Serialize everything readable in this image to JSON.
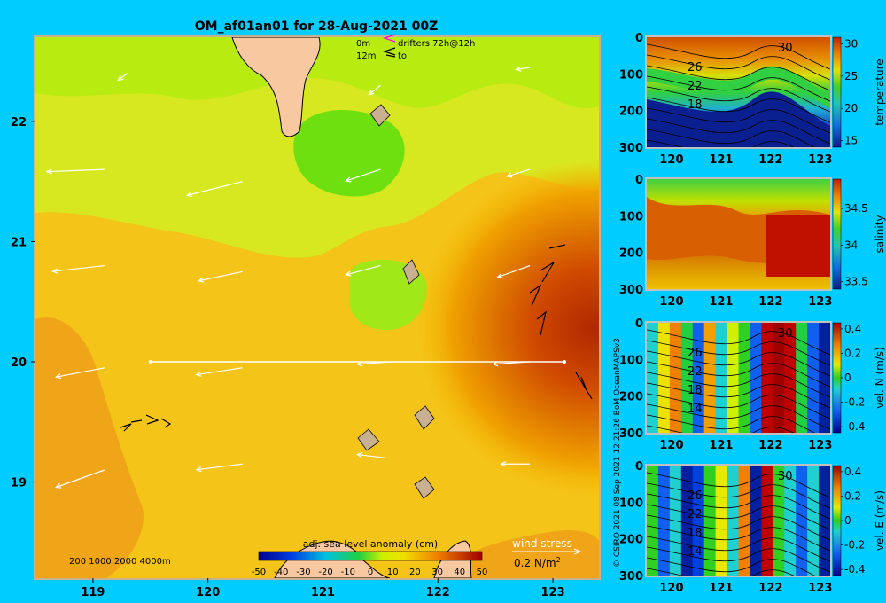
{
  "title": "OM_af01an01 for 28-Aug-2021 00Z",
  "credit": "© CSIRO 2021   08 Sep 2021 12:21:26 BoM OceanMAPSv3",
  "legend_drifters": {
    "line1_depth": "0m",
    "line1_text": "drifters 72h@12h",
    "line2_depth": "12m",
    "line2_text": "to",
    "line1_color": "#ff00ff",
    "line2_color": "#000000"
  },
  "depth_legend": "200  1000  2000  4000m",
  "colorbar": {
    "title": "adj. sea level anomaly (cm)",
    "ticks": [
      "-50",
      "-40",
      "-30",
      "-20",
      "-10",
      "0",
      "10",
      "20",
      "30",
      "40",
      "50"
    ]
  },
  "wind_legend": {
    "label": "wind stress",
    "value": "0.2 N/m",
    "sup": "2"
  },
  "chart_data": [
    {
      "type": "heatmap",
      "name": "map",
      "title": "OM_af01an01 for 28-Aug-2021 00Z",
      "x_ticks": [
        119,
        120,
        121,
        122,
        123
      ],
      "y_ticks": [
        19,
        20,
        21,
        22
      ],
      "xlim": [
        118.5,
        123.4
      ],
      "ylim": [
        18.2,
        22.7
      ],
      "colorbar_label": "adj. sea level anomaly (cm)",
      "colorbar_range": [
        -50,
        50
      ],
      "section_line": {
        "lon": [
          119.5,
          123.1
        ],
        "lat": [
          20.0,
          20.0
        ]
      },
      "wind_vectors": [
        {
          "lon": 119.3,
          "lat": 22.4,
          "u": -0.08,
          "v": -0.06
        },
        {
          "lon": 120.0,
          "lat": 22.5,
          "u": 0,
          "v": 0
        },
        {
          "lon": 121.5,
          "lat": 22.3,
          "u": -0.1,
          "v": -0.08
        },
        {
          "lon": 122.8,
          "lat": 22.45,
          "u": -0.12,
          "v": -0.02
        },
        {
          "lon": 119.1,
          "lat": 21.6,
          "u": -0.5,
          "v": -0.02
        },
        {
          "lon": 120.3,
          "lat": 21.5,
          "u": -0.48,
          "v": -0.12
        },
        {
          "lon": 121.5,
          "lat": 21.6,
          "u": -0.3,
          "v": -0.1
        },
        {
          "lon": 122.8,
          "lat": 21.6,
          "u": -0.2,
          "v": -0.06
        },
        {
          "lon": 119.1,
          "lat": 20.8,
          "u": -0.45,
          "v": -0.05
        },
        {
          "lon": 120.3,
          "lat": 20.75,
          "u": -0.38,
          "v": -0.08
        },
        {
          "lon": 121.5,
          "lat": 20.8,
          "u": -0.3,
          "v": -0.08
        },
        {
          "lon": 122.8,
          "lat": 20.8,
          "u": -0.28,
          "v": -0.1
        },
        {
          "lon": 119.1,
          "lat": 19.95,
          "u": -0.42,
          "v": -0.08
        },
        {
          "lon": 120.3,
          "lat": 19.95,
          "u": -0.4,
          "v": -0.06
        },
        {
          "lon": 121.6,
          "lat": 20.0,
          "u": -0.3,
          "v": -0.02
        },
        {
          "lon": 122.8,
          "lat": 20.0,
          "u": -0.32,
          "v": -0.02
        },
        {
          "lon": 119.1,
          "lat": 19.1,
          "u": -0.42,
          "v": -0.15
        },
        {
          "lon": 120.3,
          "lat": 19.15,
          "u": -0.4,
          "v": -0.05
        },
        {
          "lon": 121.55,
          "lat": 19.2,
          "u": -0.25,
          "v": 0.03
        },
        {
          "lon": 122.8,
          "lat": 19.15,
          "u": -0.25,
          "v": 0
        }
      ]
    },
    {
      "type": "heatmap",
      "name": "temperature",
      "ylabel": "temperature",
      "x_ticks": [
        120,
        121,
        122,
        123
      ],
      "y_ticks": [
        0,
        100,
        200,
        300
      ],
      "xlim": [
        119.5,
        123.2
      ],
      "ylim": [
        300,
        0
      ],
      "colorbar_ticks": [
        15,
        20,
        25,
        30
      ],
      "colorbar_range": [
        14,
        31
      ],
      "contour_labels": [
        "30",
        "26",
        "22",
        "18"
      ]
    },
    {
      "type": "heatmap",
      "name": "salinity",
      "ylabel": "salinity",
      "x_ticks": [
        120,
        121,
        122,
        123
      ],
      "y_ticks": [
        0,
        100,
        200,
        300
      ],
      "xlim": [
        119.5,
        123.2
      ],
      "ylim": [
        300,
        0
      ],
      "colorbar_ticks": [
        "33.5",
        "34",
        "34.5"
      ],
      "colorbar_range": [
        33.4,
        34.9
      ]
    },
    {
      "type": "heatmap",
      "name": "velocity-north",
      "ylabel": "vel. N (m/s)",
      "x_ticks": [
        120,
        121,
        122,
        123
      ],
      "y_ticks": [
        0,
        100,
        200,
        300
      ],
      "xlim": [
        119.5,
        123.2
      ],
      "ylim": [
        300,
        0
      ],
      "colorbar_ticks": [
        "-0.4",
        "-0.2",
        "0",
        "0.2",
        "0.4"
      ],
      "colorbar_range": [
        -0.45,
        0.45
      ],
      "contour_labels": [
        "30",
        "26",
        "22",
        "18",
        "14"
      ]
    },
    {
      "type": "heatmap",
      "name": "velocity-east",
      "ylabel": "vel. E (m/s)",
      "x_ticks": [
        120,
        121,
        122,
        123
      ],
      "y_ticks": [
        0,
        100,
        200,
        300
      ],
      "xlim": [
        119.5,
        123.2
      ],
      "ylim": [
        300,
        0
      ],
      "colorbar_ticks": [
        "-0.4",
        "-0.2",
        "0",
        "0.2",
        "0.4"
      ],
      "colorbar_range": [
        -0.45,
        0.45
      ],
      "contour_labels": [
        "30",
        "26",
        "22",
        "18",
        "14"
      ]
    }
  ]
}
